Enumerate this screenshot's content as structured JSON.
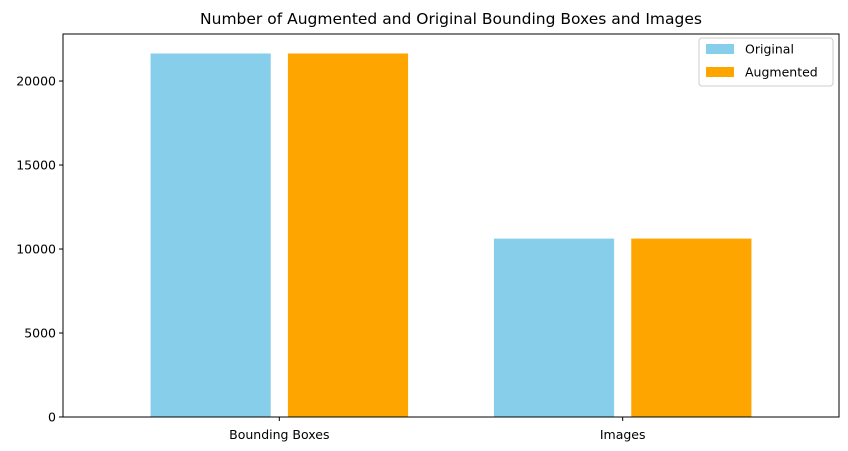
{
  "chart_data": {
    "type": "bar",
    "title": "Number of Augmented and Original Bounding Boxes and  Images",
    "xlabel": "",
    "ylabel": "",
    "categories": [
      "Bounding Boxes",
      "Images"
    ],
    "series": [
      {
        "name": "Original",
        "color": "#87ceeb",
        "values": [
          21640,
          10620
        ]
      },
      {
        "name": "Augmented",
        "color": "#ffa500",
        "values": [
          21640,
          10620
        ]
      }
    ],
    "ylim": [
      0,
      22800
    ],
    "yticks": [
      0,
      5000,
      10000,
      15000,
      20000
    ],
    "grid": false,
    "legend_position": "top-right"
  }
}
